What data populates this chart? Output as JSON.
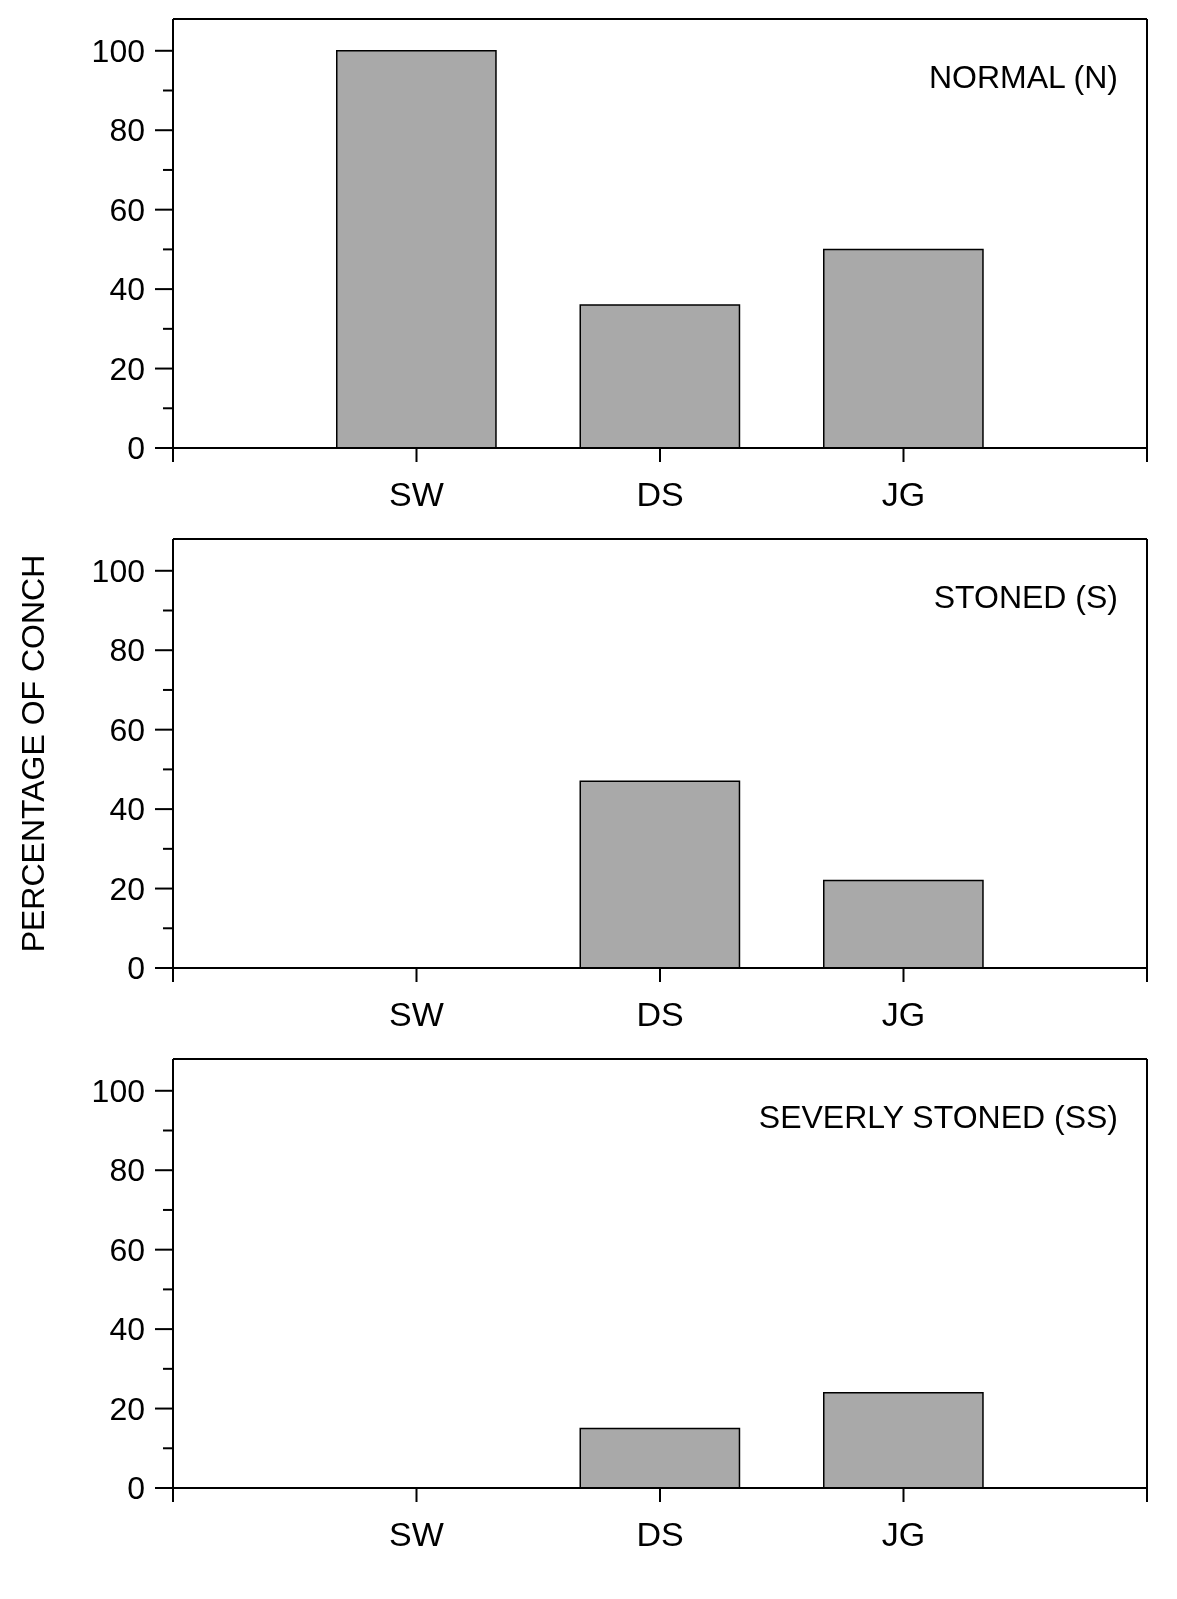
{
  "chart_data": [
    {
      "type": "bar",
      "title": "NORMAL (N)",
      "categories": [
        "SW",
        "DS",
        "JG"
      ],
      "values": [
        100,
        36,
        50
      ],
      "color": "#a9a9a9",
      "ylim": [
        0,
        108
      ],
      "yticks": [
        0,
        {
          "value": 10,
          "label": null
        },
        20,
        {
          "value": 30,
          "label": null
        },
        40,
        {
          "value": 50,
          "label": null
        },
        60,
        {
          "value": 70,
          "label": null
        },
        80,
        {
          "value": 90,
          "label": null
        },
        100
      ],
      "grid": false,
      "legend": false
    },
    {
      "type": "bar",
      "title": "STONED (S)",
      "ylabel": "PERCENTAGE OF CONCH",
      "categories": [
        "SW",
        "DS",
        "JG"
      ],
      "values": [
        0,
        47,
        22
      ],
      "color": "#a9a9a9",
      "ylim": [
        0,
        108
      ],
      "yticks": [
        0,
        {
          "value": 10,
          "label": null
        },
        20,
        {
          "value": 30,
          "label": null
        },
        40,
        {
          "value": 50,
          "label": null
        },
        60,
        {
          "value": 70,
          "label": null
        },
        80,
        {
          "value": 90,
          "label": null
        },
        100
      ],
      "grid": false,
      "legend": false
    },
    {
      "type": "bar",
      "title": "SEVERLY STONED (SS)",
      "categories": [
        "SW",
        "DS",
        "JG"
      ],
      "values": [
        0,
        15,
        24
      ],
      "color": "#a9a9a9",
      "ylim": [
        0,
        108
      ],
      "yticks": [
        0,
        {
          "value": 10,
          "label": null
        },
        20,
        {
          "value": 30,
          "label": null
        },
        40,
        {
          "value": 50,
          "label": null
        },
        60,
        {
          "value": 70,
          "label": null
        },
        80,
        {
          "value": 90,
          "label": null
        },
        100
      ],
      "grid": false,
      "legend": false
    }
  ]
}
